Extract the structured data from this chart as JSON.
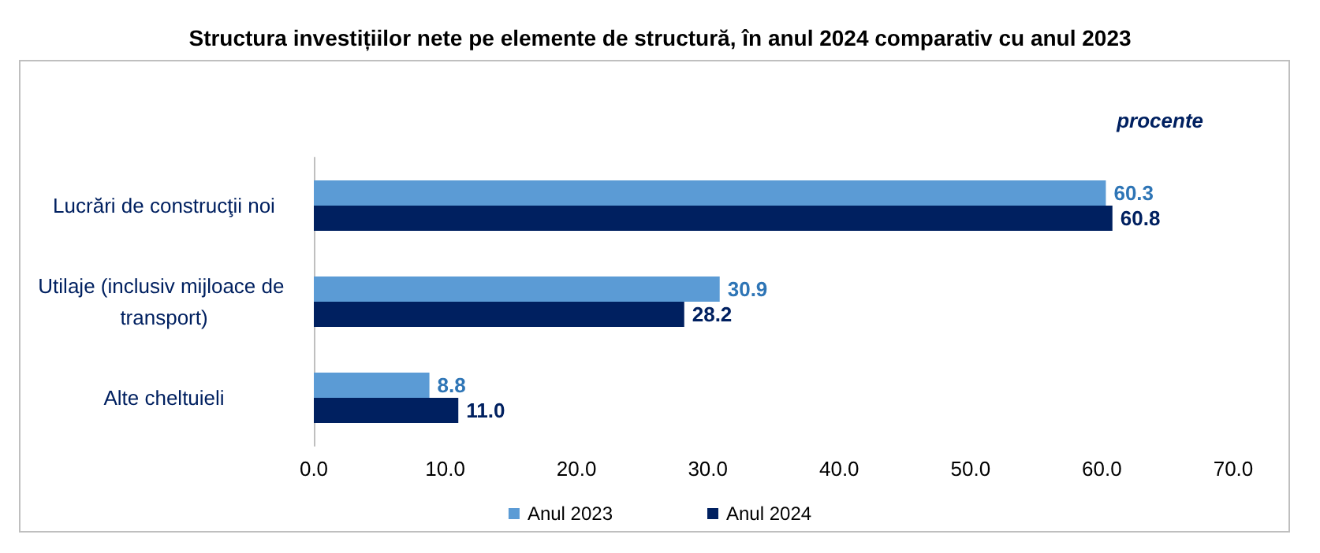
{
  "chart_data": {
    "type": "bar",
    "orientation": "horizontal",
    "title": "Structura investițiilor nete pe elemente de structură, în anul 2024 comparativ cu anul 2023",
    "categories": [
      "Lucrări de construcţii noi",
      "Utilaje (inclusiv mijloace de transport)",
      "Alte cheltuieli"
    ],
    "series": [
      {
        "name": "Anul 2023",
        "color": "#5b9bd5",
        "values": [
          60.3,
          30.9,
          8.8
        ],
        "value_labels": [
          "60.3",
          "30.9",
          "8.8"
        ]
      },
      {
        "name": "Anul 2024",
        "color": "#002060",
        "values": [
          60.8,
          28.2,
          11.0
        ],
        "value_labels": [
          "60.8",
          "28.2",
          "11.0"
        ]
      }
    ],
    "xlim": [
      0,
      70
    ],
    "xticks": [
      {
        "value": 0,
        "label": "0.0"
      },
      {
        "value": 10,
        "label": "10.0"
      },
      {
        "value": 20,
        "label": "20.0"
      },
      {
        "value": 30,
        "label": "30.0"
      },
      {
        "value": 40,
        "label": "40.0"
      },
      {
        "value": 50,
        "label": "50.0"
      },
      {
        "value": 60,
        "label": "60.0"
      },
      {
        "value": 70,
        "label": "70.0"
      }
    ],
    "annotations": [
      "procente"
    ],
    "grid": false,
    "legend": "bottom"
  }
}
